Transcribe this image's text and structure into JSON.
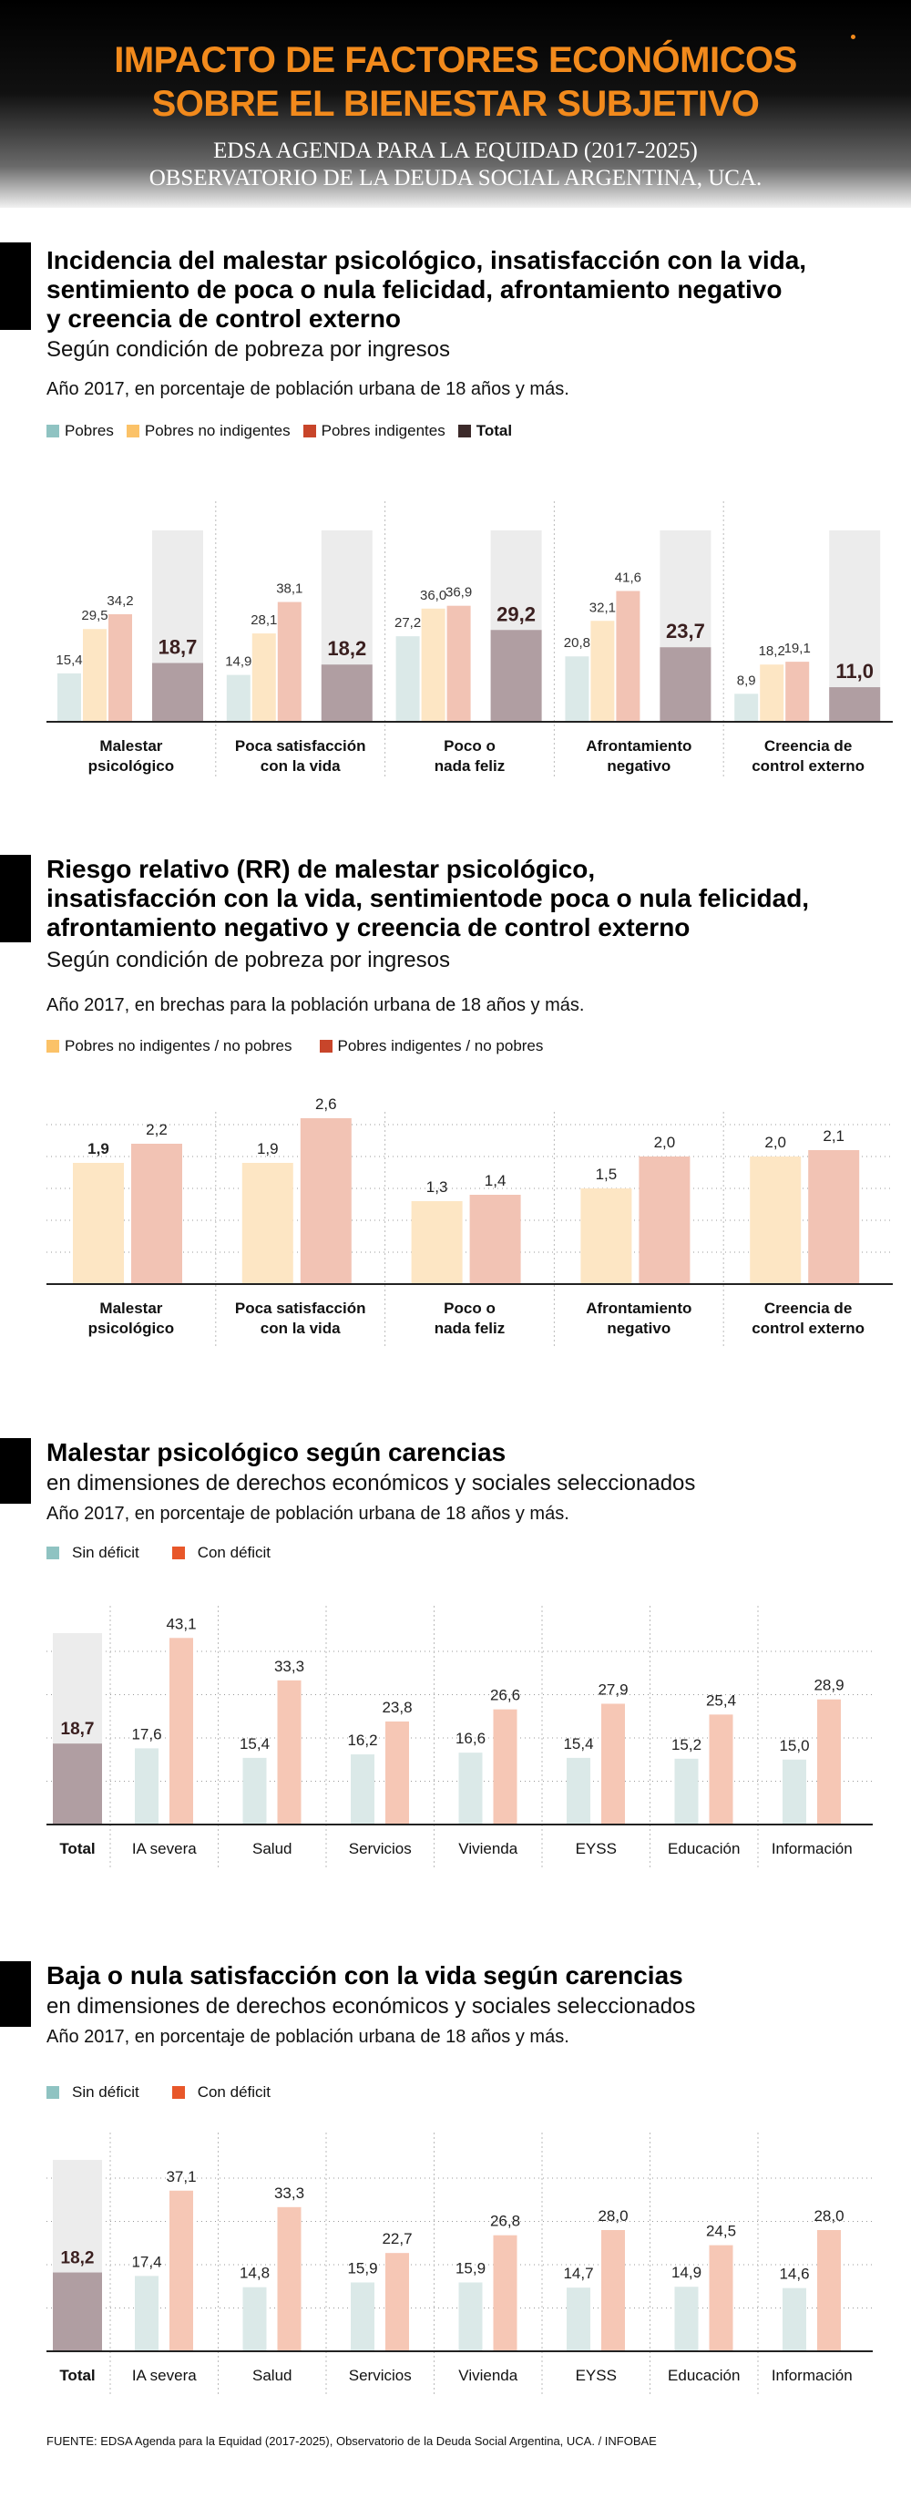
{
  "header": {
    "title_line1": "IMPACTO DE FACTORES ECONÓMICOS",
    "title_line2": "SOBRE EL BIENESTAR SUBJETIVO",
    "subtitle_line1": "EDSA AGENDA PARA LA EQUIDAD (2017-2025)",
    "subtitle_line2": "OBSERVATORIO DE LA DEUDA SOCIAL ARGENTINA, UCA."
  },
  "section1": {
    "title_line1": "Incidencia del malestar psicológico, insatisfacción con la vida,",
    "title_line2": "sentimiento de poca o nula felicidad, afrontamiento negativo",
    "title_line3": "y creencia de control externo",
    "subtitle": "Según condición de pobreza por ingresos",
    "note": "Año 2017, en porcentaje de población urbana de 18 años y más.",
    "legend": [
      "Pobres",
      "Pobres no indigentes",
      "Pobres indigentes",
      "Total"
    ]
  },
  "section2": {
    "title_line1": "Riesgo relativo (RR) de malestar psicológico,",
    "title_line2": "insatisfacción con la vida, sentimientode poca o nula felicidad,",
    "title_line3": "afrontamiento negativo y creencia de control externo",
    "subtitle": "Según condición de pobreza por ingresos",
    "note": "Año 2017, en brechas para la población urbana de 18 años y más.",
    "legend": [
      "Pobres no indigentes / no pobres",
      "Pobres indigentes / no pobres"
    ]
  },
  "section3": {
    "title": "Malestar psicológico según carencias",
    "subtitle": "en dimensiones de derechos económicos y sociales seleccionados",
    "note": "Año 2017, en porcentaje de población urbana de 18 años y más.",
    "legend": [
      "Sin déficit",
      "Con déficit"
    ]
  },
  "section4": {
    "title": "Baja o nula satisfacción con la vida según carencias",
    "subtitle": "en dimensiones de derechos económicos y sociales seleccionados",
    "note": "Año 2017, en porcentaje de población urbana de 18 años y más.",
    "legend": [
      "Sin déficit",
      "Con déficit"
    ]
  },
  "footer": "FUENTE: EDSA Agenda para la Equidad (2017-2025), Observatorio de la Deuda Social Argentina, UCA. / INFOBAE",
  "colors": {
    "pobres": "#dbe9e8",
    "no_indigentes": "#fde6c4",
    "indigentes": "#f2c3b4",
    "total": "#b09ea2",
    "total_bg": "#ececec",
    "sin_deficit": "#dbe9e8",
    "con_deficit": "#f6c7b5",
    "legend_pobres": "#8fc3c2",
    "legend_no_indigentes": "#fbc268",
    "legend_indigentes": "#c8452a",
    "legend_total": "#3c2a2a",
    "legend_sin": "#8fc3c2",
    "legend_con": "#e8572a",
    "title_orange": "#f28a1c"
  },
  "chart_data": [
    {
      "type": "bar",
      "categories": [
        "Malestar psicológico",
        "Poca satisfacción con la vida",
        "Poco o nada feliz",
        "Afrontamiento negativo",
        "Creencia de control externo"
      ],
      "series": [
        {
          "name": "Pobres",
          "values": [
            15.4,
            14.9,
            27.2,
            20.8,
            8.9
          ],
          "labels": [
            "15,4",
            "14,9",
            "27,2",
            "20,8",
            "8,9"
          ]
        },
        {
          "name": "Pobres no indigentes",
          "values": [
            29.5,
            28.1,
            36.0,
            32.1,
            18.2
          ],
          "labels": [
            "29,5",
            "28,1",
            "36,0",
            "32,1",
            "18,2"
          ]
        },
        {
          "name": "Pobres indigentes",
          "values": [
            34.2,
            38.1,
            36.9,
            41.6,
            19.1
          ],
          "labels": [
            "34,2",
            "38,1",
            "36,9",
            "41,6",
            "19,1"
          ]
        },
        {
          "name": "Total",
          "values": [
            18.7,
            18.2,
            29.2,
            23.7,
            11.0
          ],
          "labels": [
            "18,7",
            "18,2",
            "29,2",
            "23,7",
            "11,0"
          ]
        }
      ]
    },
    {
      "type": "bar",
      "categories": [
        "Malestar psicológico",
        "Poca satisfacción con la vida",
        "Poco o nada feliz",
        "Afrontamiento negativo",
        "Creencia de control externo"
      ],
      "series": [
        {
          "name": "Pobres no indigentes / no pobres",
          "values": [
            1.9,
            1.9,
            1.3,
            1.5,
            2.0
          ],
          "labels": [
            "1,9",
            "1,9",
            "1,3",
            "1,5",
            "2,0"
          ]
        },
        {
          "name": "Pobres indigentes / no pobres",
          "values": [
            2.2,
            2.6,
            1.4,
            2.0,
            2.1
          ],
          "labels": [
            "2,2",
            "2,6",
            "1,4",
            "2,0",
            "2,1"
          ]
        }
      ]
    },
    {
      "type": "bar",
      "total": {
        "label": "Total",
        "value": 18.7,
        "value_label": "18,7"
      },
      "categories": [
        "IA severa",
        "Salud",
        "Servicios",
        "Vivienda",
        "EYSS",
        "Educación",
        "Información"
      ],
      "series": [
        {
          "name": "Sin déficit",
          "values": [
            17.6,
            15.4,
            16.2,
            16.6,
            15.4,
            15.2,
            15.0
          ],
          "labels": [
            "17,6",
            "15,4",
            "16,2",
            "16,6",
            "15,4",
            "15,2",
            "15,0"
          ]
        },
        {
          "name": "Con déficit",
          "values": [
            43.1,
            33.3,
            23.8,
            26.6,
            27.9,
            25.4,
            28.9
          ],
          "labels": [
            "43,1",
            "33,3",
            "23,8",
            "26,6",
            "27,9",
            "25,4",
            "28,9"
          ]
        }
      ]
    },
    {
      "type": "bar",
      "total": {
        "label": "Total",
        "value": 18.2,
        "value_label": "18,2"
      },
      "categories": [
        "IA severa",
        "Salud",
        "Servicios",
        "Vivienda",
        "EYSS",
        "Educación",
        "Información"
      ],
      "series": [
        {
          "name": "Sin déficit",
          "values": [
            17.4,
            14.8,
            15.9,
            15.9,
            14.7,
            14.9,
            14.6
          ],
          "labels": [
            "17,4",
            "14,8",
            "15,9",
            "15,9",
            "14,7",
            "14,9",
            "14,6"
          ]
        },
        {
          "name": "Con déficit",
          "values": [
            37.1,
            33.3,
            22.7,
            26.8,
            28.0,
            24.5,
            28.0
          ],
          "labels": [
            "37,1",
            "33,3",
            "22,7",
            "26,8",
            "28,0",
            "24,5",
            "28,0"
          ]
        }
      ]
    }
  ]
}
